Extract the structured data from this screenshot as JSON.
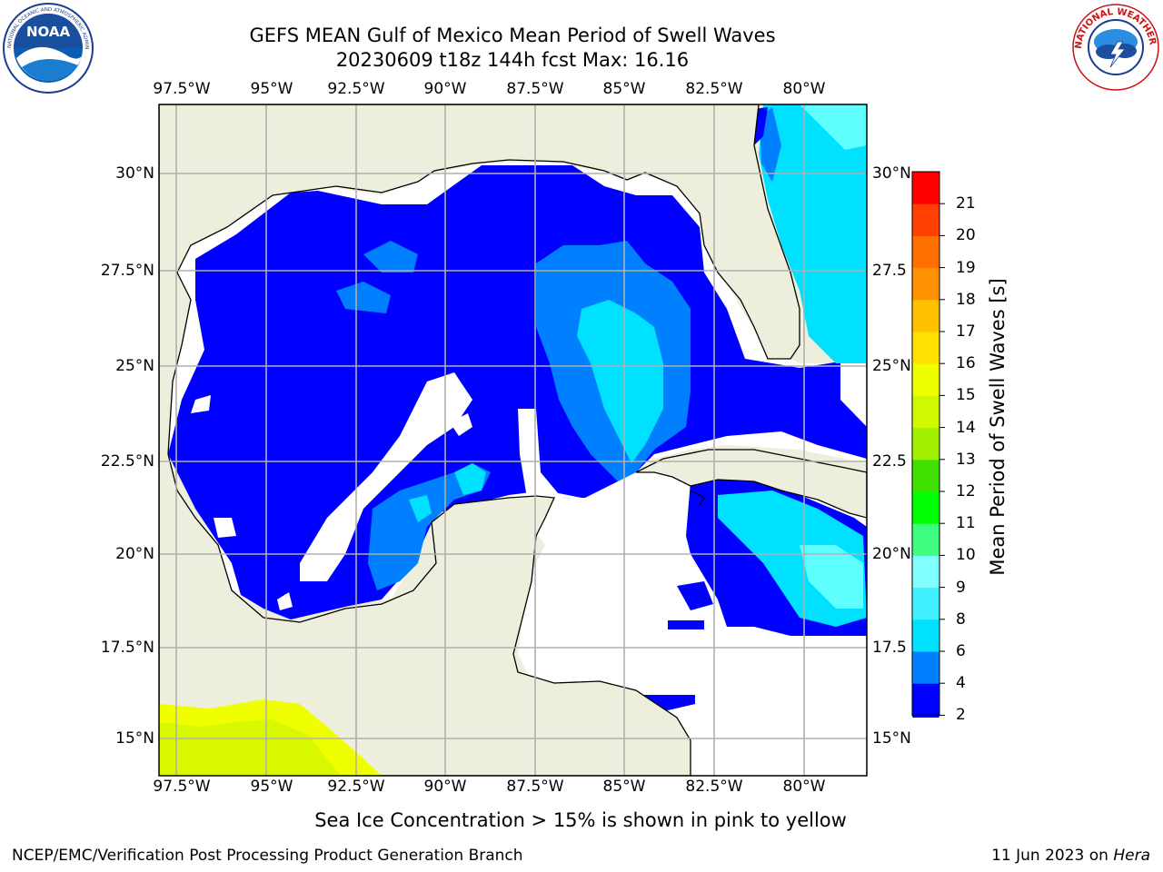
{
  "title_line1": "GEFS MEAN Gulf of Mexico Mean Period of Swell Waves",
  "title_line2": "20230609 t18z 144h fcst   Max: 16.16",
  "longitude_labels": [
    "97.5°W",
    "95°W",
    "92.5°W",
    "90°W",
    "87.5°W",
    "85°W",
    "82.5°W",
    "80°W"
  ],
  "latitude_labels": [
    "30°N",
    "27.5°N",
    "25°N",
    "22.5°N",
    "20°N",
    "17.5°N",
    "15°N"
  ],
  "right_latitude_labels": [
    "30°N",
    "27.5",
    "25°N",
    "22.5",
    "20°N",
    "17.5",
    "15°N"
  ],
  "colorbar": {
    "title": "Mean Period of Swell Waves [s]",
    "levels": [
      "2",
      "4",
      "6",
      "7",
      "8",
      "9",
      "10",
      "11",
      "12",
      "13",
      "14",
      "15",
      "16",
      "17",
      "18",
      "19",
      "20",
      "21"
    ],
    "label_values": [
      "2",
      "4",
      "6",
      "8",
      "9",
      "10",
      "11",
      "12",
      "13",
      "14",
      "15",
      "16",
      "17",
      "18",
      "19",
      "20",
      "21"
    ],
    "colors": [
      "#0000ff",
      "#0080ff",
      "#00e0ff",
      "#40f0ff",
      "#80ffff",
      "#40ff80",
      "#00ff00",
      "#40e000",
      "#a0f000",
      "#d0f800",
      "#f0ff00",
      "#ffe000",
      "#ffc000",
      "#ff9000",
      "#ff7000",
      "#ff4000",
      "#ff0000"
    ],
    "extend_min_color": "#0000ff"
  },
  "map_colors": {
    "land": "#eeeedd",
    "deep": "#0000ff",
    "mid": "#0080ff",
    "light": "#00e0ff",
    "pale": "#60ffff",
    "ice_yellow": "#f0ff00",
    "ice_lime": "#d8f800"
  },
  "bottom_note": "Sea Ice Concentration > 15% is shown in pink to yellow",
  "footer_left": "NCEP/EMC/Verification Post Processing Product Generation Branch",
  "footer_date": "11 Jun 2023 on ",
  "footer_host": "Hera",
  "logos": {
    "noaa": "NOAA",
    "noaa_ring": "NATIONAL OCEANIC AND ATMOSPHERIC ADMINISTRATION · U.S. DEPARTMENT OF COMMERCE",
    "nws_ring": "NATIONAL WEATHER SERVICE"
  }
}
